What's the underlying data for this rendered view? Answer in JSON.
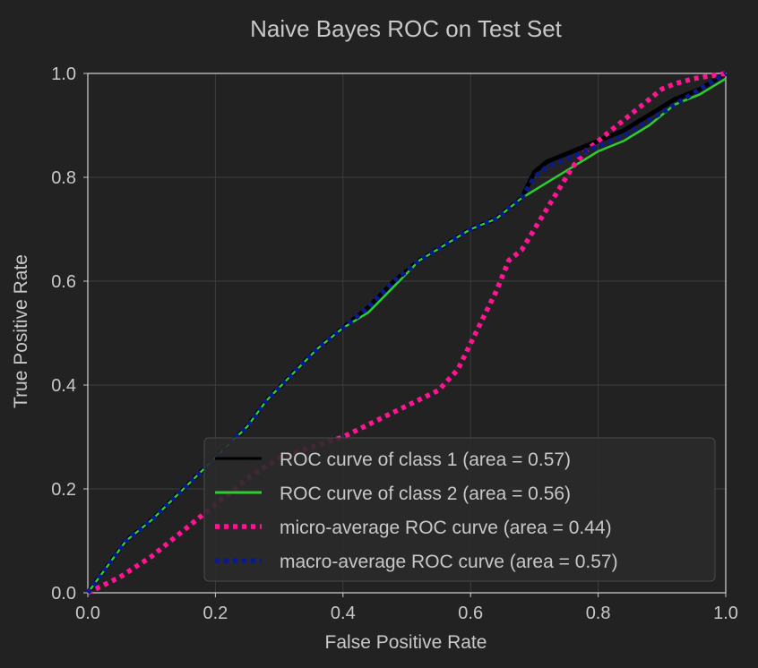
{
  "chart_data": {
    "type": "line",
    "title": "Naive Bayes ROC on Test Set",
    "xlabel": "False Positive Rate",
    "ylabel": "True Positive Rate",
    "xlim": [
      0.0,
      1.0
    ],
    "ylim": [
      0.0,
      1.0
    ],
    "x_ticks": [
      "0.0",
      "0.2",
      "0.4",
      "0.6",
      "0.8",
      "1.0"
    ],
    "y_ticks": [
      "0.0",
      "0.2",
      "0.4",
      "0.6",
      "0.8",
      "1.0"
    ],
    "grid": true,
    "legend_position": "lower-right",
    "series": [
      {
        "name": "ROC curve of class 1 (area = 0.57)",
        "color": "#000000",
        "style": "solid",
        "x": [
          0,
          0.03,
          0.06,
          0.1,
          0.15,
          0.2,
          0.25,
          0.28,
          0.32,
          0.36,
          0.4,
          0.44,
          0.48,
          0.52,
          0.56,
          0.6,
          0.64,
          0.68,
          0.7,
          0.72,
          0.76,
          0.8,
          0.84,
          0.88,
          0.92,
          0.96,
          1.0
        ],
        "y": [
          0,
          0.05,
          0.1,
          0.14,
          0.2,
          0.26,
          0.32,
          0.37,
          0.42,
          0.47,
          0.51,
          0.55,
          0.6,
          0.64,
          0.67,
          0.7,
          0.72,
          0.76,
          0.81,
          0.83,
          0.85,
          0.87,
          0.89,
          0.92,
          0.95,
          0.97,
          1.0
        ]
      },
      {
        "name": "ROC curve of class 2 (area = 0.56)",
        "color": "#2ecc2e",
        "style": "solid",
        "x": [
          0,
          0.03,
          0.06,
          0.1,
          0.15,
          0.2,
          0.25,
          0.28,
          0.32,
          0.36,
          0.4,
          0.44,
          0.48,
          0.52,
          0.56,
          0.6,
          0.64,
          0.68,
          0.72,
          0.76,
          0.8,
          0.84,
          0.88,
          0.92,
          0.96,
          1.0
        ],
        "y": [
          0,
          0.05,
          0.1,
          0.14,
          0.2,
          0.26,
          0.32,
          0.37,
          0.42,
          0.47,
          0.51,
          0.54,
          0.59,
          0.64,
          0.67,
          0.7,
          0.72,
          0.76,
          0.79,
          0.82,
          0.85,
          0.87,
          0.9,
          0.94,
          0.96,
          0.99
        ]
      },
      {
        "name": "micro-average ROC curve (area = 0.44)",
        "color": "#ff1493",
        "style": "dotted",
        "x": [
          0,
          0.05,
          0.1,
          0.15,
          0.2,
          0.25,
          0.3,
          0.35,
          0.4,
          0.45,
          0.5,
          0.55,
          0.58,
          0.6,
          0.62,
          0.64,
          0.66,
          0.68,
          0.7,
          0.72,
          0.74,
          0.76,
          0.78,
          0.8,
          0.82,
          0.84,
          0.86,
          0.88,
          0.9,
          0.92,
          0.95,
          1.0
        ],
        "y": [
          0,
          0.03,
          0.07,
          0.12,
          0.17,
          0.22,
          0.26,
          0.28,
          0.3,
          0.33,
          0.36,
          0.39,
          0.43,
          0.48,
          0.53,
          0.58,
          0.64,
          0.66,
          0.7,
          0.74,
          0.78,
          0.82,
          0.85,
          0.87,
          0.89,
          0.91,
          0.93,
          0.95,
          0.97,
          0.98,
          0.99,
          1.0
        ]
      },
      {
        "name": "macro-average ROC curve (area = 0.57)",
        "color": "#0a1a8c",
        "style": "dotted",
        "x": [
          0,
          0.03,
          0.06,
          0.1,
          0.15,
          0.2,
          0.25,
          0.28,
          0.32,
          0.36,
          0.4,
          0.44,
          0.48,
          0.52,
          0.56,
          0.6,
          0.64,
          0.68,
          0.7,
          0.72,
          0.76,
          0.8,
          0.84,
          0.88,
          0.92,
          0.96,
          1.0
        ],
        "y": [
          0,
          0.05,
          0.1,
          0.14,
          0.2,
          0.26,
          0.32,
          0.37,
          0.42,
          0.47,
          0.51,
          0.55,
          0.6,
          0.64,
          0.67,
          0.7,
          0.72,
          0.76,
          0.8,
          0.82,
          0.84,
          0.86,
          0.88,
          0.91,
          0.94,
          0.97,
          1.0
        ]
      }
    ]
  }
}
